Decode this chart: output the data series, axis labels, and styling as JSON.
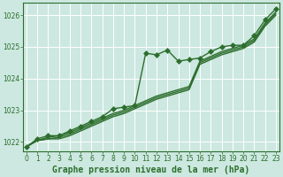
{
  "title": "",
  "xlabel": "Graphe pression niveau de la mer (hPa)",
  "ylabel": "",
  "bg_color": "#cce8e0",
  "line_color": "#2d6e2d",
  "grid_color": "#ffffff",
  "ylim": [
    1021.7,
    1026.4
  ],
  "xlim": [
    -0.3,
    23.3
  ],
  "yticks": [
    1022,
    1023,
    1024,
    1025,
    1026
  ],
  "xticks": [
    0,
    1,
    2,
    3,
    4,
    5,
    6,
    7,
    8,
    9,
    10,
    11,
    12,
    13,
    14,
    15,
    16,
    17,
    18,
    19,
    20,
    21,
    22,
    23
  ],
  "series": [
    {
      "y": [
        1021.85,
        1022.1,
        1022.2,
        1022.2,
        1022.35,
        1022.5,
        1022.65,
        1022.8,
        1023.05,
        1023.1,
        1023.15,
        1024.8,
        1024.75,
        1024.9,
        1024.55,
        1024.6,
        1024.65,
        1024.85,
        1025.0,
        1025.05,
        1025.05,
        1025.35,
        1025.85,
        1026.2
      ],
      "marker": "D",
      "markersize": 3,
      "linewidth": 1.0,
      "zorder": 4
    },
    {
      "y": [
        1021.85,
        1022.05,
        1022.15,
        1022.2,
        1022.3,
        1022.45,
        1022.6,
        1022.75,
        1022.9,
        1023.0,
        1023.15,
        1023.3,
        1023.45,
        1023.55,
        1023.65,
        1023.75,
        1024.55,
        1024.7,
        1024.85,
        1024.95,
        1025.05,
        1025.25,
        1025.75,
        1026.1
      ],
      "marker": null,
      "markersize": 0,
      "linewidth": 1.0,
      "zorder": 3
    },
    {
      "y": [
        1021.85,
        1022.05,
        1022.1,
        1022.15,
        1022.25,
        1022.4,
        1022.55,
        1022.7,
        1022.85,
        1022.95,
        1023.1,
        1023.25,
        1023.4,
        1023.5,
        1023.6,
        1023.7,
        1024.5,
        1024.65,
        1024.8,
        1024.9,
        1025.0,
        1025.2,
        1025.7,
        1026.05
      ],
      "marker": null,
      "markersize": 0,
      "linewidth": 1.0,
      "zorder": 2
    },
    {
      "y": [
        1021.85,
        1022.05,
        1022.1,
        1022.1,
        1022.2,
        1022.35,
        1022.5,
        1022.65,
        1022.8,
        1022.9,
        1023.05,
        1023.2,
        1023.35,
        1023.45,
        1023.55,
        1023.65,
        1024.45,
        1024.6,
        1024.75,
        1024.85,
        1024.95,
        1025.15,
        1025.65,
        1026.0
      ],
      "marker": null,
      "markersize": 0,
      "linewidth": 1.0,
      "zorder": 1
    }
  ],
  "tick_fontsize": 5.5,
  "label_fontsize": 7,
  "label_fontweight": "bold"
}
